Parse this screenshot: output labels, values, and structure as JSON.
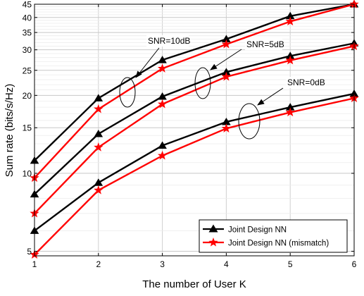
{
  "chart_data": {
    "type": "line",
    "xlabel": "The number of User K",
    "ylabel": "Sum rate (bits/s/Hz)",
    "y_scale": "log",
    "xlim": [
      1,
      6
    ],
    "ylim": [
      4.8,
      45
    ],
    "grid": true,
    "x": [
      1,
      2,
      3,
      4,
      5,
      6
    ],
    "x_ticks": [
      "1",
      "2",
      "3",
      "4",
      "5",
      "6"
    ],
    "y_ticks": [
      5,
      10,
      15,
      20,
      25,
      30,
      35,
      40,
      45
    ],
    "y_tick_labels": [
      "5",
      "10",
      "15",
      "20",
      "25",
      "30",
      "35",
      "40",
      "45"
    ],
    "legend_position": "bottom-right",
    "legend": [
      {
        "label": "Joint Design NN",
        "color": "#000000",
        "marker": "triangle"
      },
      {
        "label": "Joint Design NN (mismatch)",
        "color": "#ff0000",
        "marker": "star"
      }
    ],
    "series": [
      {
        "method": "Joint Design NN",
        "snr": "SNR=10dB",
        "color": "#000000",
        "marker": "triangle",
        "values": [
          11.2,
          19.5,
          27.4,
          33.0,
          40.5,
          45.0
        ]
      },
      {
        "method": "Joint Design NN (mismatch)",
        "snr": "SNR=10dB",
        "color": "#ff0000",
        "marker": "star",
        "values": [
          9.6,
          17.7,
          25.4,
          31.5,
          38.6,
          45.0
        ]
      },
      {
        "method": "Joint Design NN",
        "snr": "SNR=5dB",
        "color": "#000000",
        "marker": "triangle",
        "values": [
          8.3,
          14.2,
          19.8,
          24.6,
          28.4,
          31.8
        ]
      },
      {
        "method": "Joint Design NN (mismatch)",
        "snr": "SNR=5dB",
        "color": "#ff0000",
        "marker": "star",
        "values": [
          7.0,
          12.6,
          18.5,
          23.6,
          27.3,
          31.0
        ]
      },
      {
        "method": "Joint Design NN",
        "snr": "SNR=0dB",
        "color": "#000000",
        "marker": "triangle",
        "values": [
          6.0,
          9.2,
          12.8,
          15.8,
          18.0,
          20.3
        ]
      },
      {
        "method": "Joint Design NN (mismatch)",
        "snr": "SNR=0dB",
        "color": "#ff0000",
        "marker": "star",
        "values": [
          4.85,
          8.6,
          11.7,
          14.9,
          17.2,
          19.5
        ]
      }
    ],
    "annotations": [
      {
        "text": "SNR=10dB",
        "x": 2.45,
        "y": 21.5
      },
      {
        "text": "SNR=5dB",
        "x": 3.65,
        "y": 22.3
      },
      {
        "text": "SNR=0dB",
        "x": 4.4,
        "y": 16.2
      }
    ]
  }
}
